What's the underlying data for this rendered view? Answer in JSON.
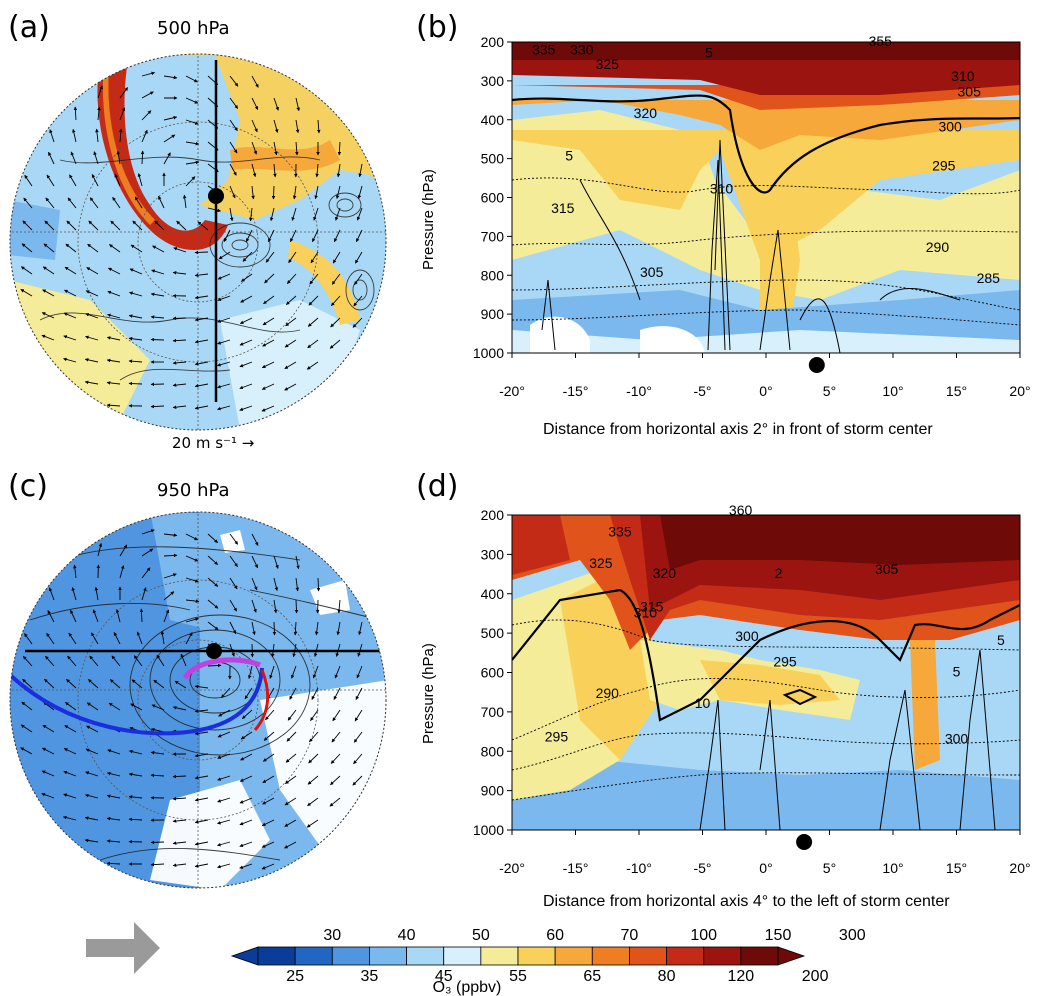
{
  "panels": {
    "a": {
      "letter": "(a)",
      "title": "500 hPa",
      "vector_ref": "20 m s⁻¹",
      "vector_arrow": "→"
    },
    "b": {
      "letter": "(b)",
      "xlabel": "Distance from horizontal axis 2° in front of storm center"
    },
    "c": {
      "letter": "(c)",
      "title": "950 hPa"
    },
    "d": {
      "letter": "(d)",
      "xlabel": "Distance from horizontal axis 4° to the left of storm center"
    }
  },
  "colorbar": {
    "label": "O₃ (ppbv)",
    "upper_ticks": [
      "30",
      "40",
      "50",
      "60",
      "70",
      "100",
      "150",
      "300"
    ],
    "lower_ticks": [
      "25",
      "35",
      "45",
      "55",
      "65",
      "80",
      "120",
      "200"
    ],
    "colors": [
      "#0a3d9a",
      "#2166c2",
      "#4f95e0",
      "#7ab8ee",
      "#a8d8f5",
      "#d8f0fb",
      "#f4ec98",
      "#f9d15a",
      "#f6a83a",
      "#ef7d22",
      "#e0531b",
      "#c42b17",
      "#9c1410",
      "#6e0a08"
    ],
    "arrow_label": ""
  },
  "chart_data": [
    {
      "panel": "(b)",
      "type": "heatmap",
      "ylabel": "Pressure (hPa)",
      "xlabel": "Distance from horizontal axis 2° in front of storm center",
      "x_ticks": [
        "-20°",
        "-15°",
        "-10°",
        "-5°",
        "0°",
        "5°",
        "10°",
        "15°",
        "20°"
      ],
      "y_ticks": [
        "200",
        "300",
        "400",
        "500",
        "600",
        "700",
        "800",
        "900",
        "1000"
      ],
      "xlim": [
        -20,
        20
      ],
      "ylim": [
        1000,
        200
      ],
      "storm_center_x": 4,
      "contour_labels": [
        {
          "text": "335",
          "x": -17.5,
          "y": 232
        },
        {
          "text": "330",
          "x": -14.5,
          "y": 232
        },
        {
          "text": "325",
          "x": -12.5,
          "y": 270
        },
        {
          "text": "320",
          "x": -9.5,
          "y": 395
        },
        {
          "text": "5",
          "x": -4.5,
          "y": 240
        },
        {
          "text": "315",
          "x": -16,
          "y": 640
        },
        {
          "text": "305",
          "x": -9,
          "y": 805
        },
        {
          "text": "310",
          "x": -3.5,
          "y": 590
        },
        {
          "text": "295",
          "x": 14,
          "y": 530
        },
        {
          "text": "290",
          "x": 13.5,
          "y": 740
        },
        {
          "text": "285",
          "x": 17.5,
          "y": 820
        },
        {
          "text": "300",
          "x": 14.5,
          "y": 430
        },
        {
          "text": "305",
          "x": 16,
          "y": 340
        },
        {
          "text": "310",
          "x": 15.5,
          "y": 300
        },
        {
          "text": "355",
          "x": 9,
          "y": 210
        },
        {
          "text": "5",
          "x": -15.5,
          "y": 505
        }
      ]
    },
    {
      "panel": "(d)",
      "type": "heatmap",
      "ylabel": "Pressure (hPa)",
      "xlabel": "Distance from horizontal axis 4° to the left of storm center",
      "x_ticks": [
        "-20°",
        "-15°",
        "-10°",
        "-5°",
        "0°",
        "5°",
        "10°",
        "15°",
        "20°"
      ],
      "y_ticks": [
        "200",
        "300",
        "400",
        "500",
        "600",
        "700",
        "800",
        "900",
        "1000"
      ],
      "xlim": [
        -20,
        20
      ],
      "ylim": [
        1000,
        200
      ],
      "storm_center_x": 3,
      "contour_labels": [
        {
          "text": "360",
          "x": -2,
          "y": 200
        },
        {
          "text": "335",
          "x": -11.5,
          "y": 255
        },
        {
          "text": "325",
          "x": -13,
          "y": 335
        },
        {
          "text": "320",
          "x": -8,
          "y": 360
        },
        {
          "text": "315",
          "x": -9,
          "y": 445
        },
        {
          "text": "310",
          "x": -9.5,
          "y": 460
        },
        {
          "text": "305",
          "x": 9.5,
          "y": 350
        },
        {
          "text": "300",
          "x": -1.5,
          "y": 520
        },
        {
          "text": "295",
          "x": 1.5,
          "y": 585
        },
        {
          "text": "290",
          "x": -12.5,
          "y": 665
        },
        {
          "text": "295",
          "x": -16.5,
          "y": 775
        },
        {
          "text": "2",
          "x": 1,
          "y": 360
        },
        {
          "text": "5",
          "x": 15,
          "y": 610
        },
        {
          "text": "300",
          "x": 15,
          "y": 780
        },
        {
          "text": "5",
          "x": 18.5,
          "y": 530
        },
        {
          "text": "10",
          "x": -5,
          "y": 690
        }
      ]
    }
  ]
}
